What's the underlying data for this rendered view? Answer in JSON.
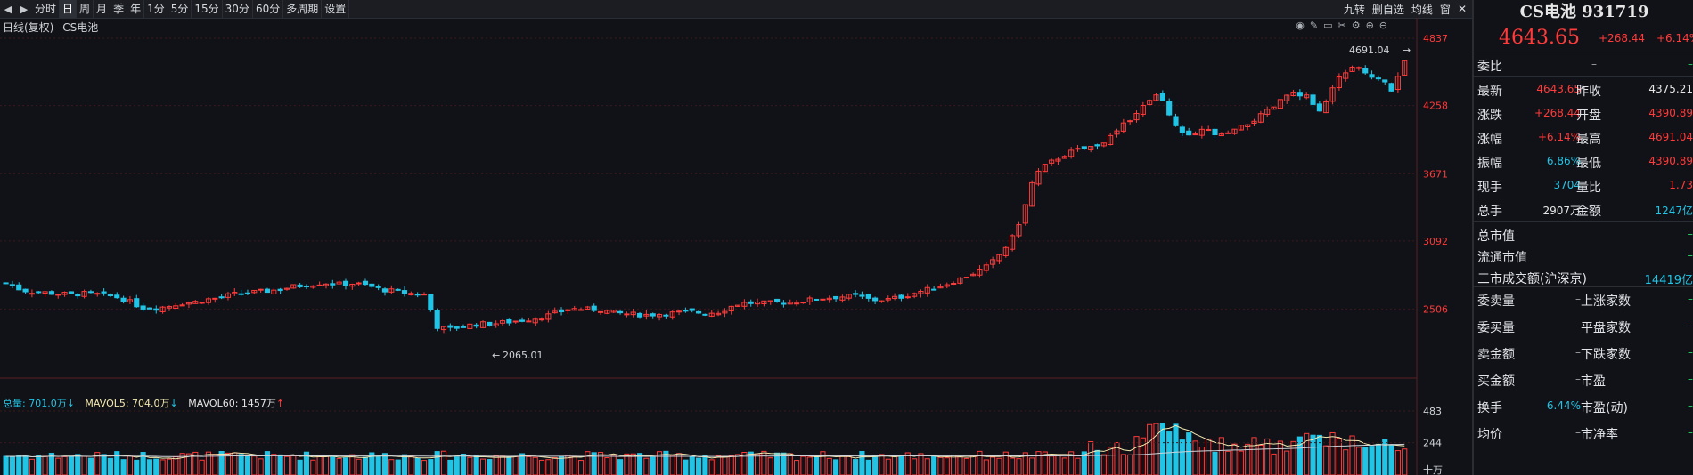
{
  "toolbar": {
    "periods": [
      "分时",
      "日",
      "周",
      "月",
      "季",
      "年",
      "1分",
      "5分",
      "15分",
      "30分",
      "60分",
      "多周期",
      "设置"
    ],
    "active_period": "日",
    "right_buttons": [
      "九转",
      "删自选",
      "均线",
      "窗"
    ]
  },
  "chart": {
    "subtitle_left": "日线(复权)",
    "subtitle_name": "CS电池",
    "high_label": "4691.04",
    "low_label": "2065.01",
    "price_ticks": [
      "4837",
      "4258",
      "3671",
      "3092",
      "2506"
    ],
    "volume_ticks": [
      "483",
      "244",
      "十万"
    ],
    "volume_total_label": "总量: 701.0万",
    "mavol5_label": "MAVOL5: 704.0万",
    "mavol60_label": "MAVOL60: 1457万"
  },
  "panel": {
    "title": "CS电池 931719",
    "last": "4643.65",
    "change": "+268.44",
    "change_pct": "+6.14%",
    "weibi_label": "委比",
    "weibi_value": "–",
    "rows": [
      {
        "l1": "最新",
        "v1": "4643.65",
        "c1": "red",
        "l2": "昨收",
        "v2": "4375.21",
        "c2": "white"
      },
      {
        "l1": "涨跌",
        "v1": "+268.44",
        "c1": "red",
        "l2": "开盘",
        "v2": "4390.89",
        "c2": "red"
      },
      {
        "l1": "涨幅",
        "v1": "+6.14%",
        "c1": "red",
        "l2": "最高",
        "v2": "4691.04",
        "c2": "red"
      },
      {
        "l1": "振幅",
        "v1": "6.86%",
        "c1": "cyan",
        "l2": "最低",
        "v2": "4390.89",
        "c2": "red"
      },
      {
        "l1": "现手",
        "v1": "3704",
        "c1": "cyan",
        "l2": "量比",
        "v2": "1.73",
        "c2": "red"
      },
      {
        "l1": "总手",
        "v1": "2907万",
        "c1": "white",
        "l2": "金额",
        "v2": "1247亿",
        "c2": "cyan"
      }
    ],
    "market_rows": [
      {
        "label": "总市值",
        "value": "–"
      },
      {
        "label": "流通市值",
        "value": "–"
      },
      {
        "label": "三市成交额(沪深京)",
        "value": "14419亿"
      }
    ],
    "bottom_rows": [
      {
        "l1": "委卖量",
        "v1": "–",
        "l2": "上涨家数",
        "v2": "–"
      },
      {
        "l1": "委买量",
        "v1": "–",
        "l2": "平盘家数",
        "v2": "–"
      },
      {
        "l1": "卖金额",
        "v1": "–",
        "l2": "下跌家数",
        "v2": "–"
      },
      {
        "l1": "买金额",
        "v1": "–",
        "l2": "市盈",
        "v2": "–"
      },
      {
        "l1": "换手",
        "v1": "6.44%",
        "l2": "市盈(动)",
        "v2": "–"
      },
      {
        "l1": "均价",
        "v1": "–",
        "l2": "市净率",
        "v2": "–"
      }
    ]
  },
  "chart_data": {
    "type": "candlestick",
    "ylim": [
      2065,
      4837
    ],
    "price_ticks": [
      4837,
      4258,
      3671,
      3092,
      2506
    ],
    "annotated_high": 4691.04,
    "annotated_low": 2065.01,
    "close_path": [
      [
        0,
        2730
      ],
      [
        8,
        2672
      ],
      [
        14,
        2654
      ],
      [
        20,
        2650
      ],
      [
        26,
        2640
      ],
      [
        34,
        2632
      ],
      [
        42,
        2640
      ],
      [
        50,
        2630
      ],
      [
        58,
        2612
      ],
      [
        64,
        2580
      ],
      [
        72,
        2520
      ],
      [
        80,
        2515
      ],
      [
        86,
        2532
      ],
      [
        92,
        2555
      ],
      [
        100,
        2566
      ],
      [
        106,
        2588
      ],
      [
        112,
        2600
      ],
      [
        120,
        2632
      ],
      [
        128,
        2646
      ],
      [
        136,
        2658
      ],
      [
        144,
        2672
      ],
      [
        152,
        2700
      ],
      [
        160,
        2716
      ],
      [
        168,
        2732
      ],
      [
        176,
        2720
      ],
      [
        184,
        2726
      ],
      [
        192,
        2706
      ],
      [
        198,
        2676
      ],
      [
        206,
        2658
      ],
      [
        214,
        2640
      ],
      [
        222,
        2630
      ],
      [
        228,
        2356
      ],
      [
        234,
        2330
      ],
      [
        242,
        2360
      ],
      [
        250,
        2378
      ],
      [
        258,
        2380
      ],
      [
        266,
        2396
      ],
      [
        274,
        2412
      ],
      [
        282,
        2432
      ],
      [
        290,
        2466
      ],
      [
        298,
        2508
      ],
      [
        306,
        2506
      ],
      [
        314,
        2502
      ],
      [
        322,
        2474
      ],
      [
        330,
        2462
      ],
      [
        338,
        2456
      ],
      [
        346,
        2464
      ],
      [
        354,
        2472
      ],
      [
        362,
        2484
      ],
      [
        370,
        2470
      ],
      [
        378,
        2484
      ],
      [
        386,
        2546
      ],
      [
        392,
        2560
      ],
      [
        400,
        2556
      ],
      [
        408,
        2560
      ],
      [
        416,
        2566
      ],
      [
        424,
        2582
      ],
      [
        432,
        2600
      ],
      [
        440,
        2610
      ],
      [
        450,
        2620
      ],
      [
        458,
        2584
      ],
      [
        466,
        2586
      ],
      [
        474,
        2612
      ],
      [
        482,
        2650
      ],
      [
        490,
        2684
      ],
      [
        498,
        2724
      ],
      [
        506,
        2774
      ],
      [
        514,
        2830
      ],
      [
        520,
        2880
      ],
      [
        526,
        2980
      ],
      [
        532,
        3100
      ],
      [
        538,
        3320
      ],
      [
        544,
        3650
      ],
      [
        550,
        3740
      ],
      [
        556,
        3800
      ],
      [
        562,
        3850
      ],
      [
        568,
        3880
      ],
      [
        574,
        3900
      ],
      [
        580,
        3940
      ],
      [
        586,
        4000
      ],
      [
        592,
        4100
      ],
      [
        598,
        4200
      ],
      [
        604,
        4280
      ],
      [
        610,
        4350
      ],
      [
        616,
        4180
      ],
      [
        622,
        4010
      ],
      [
        628,
        3980
      ],
      [
        634,
        4060
      ],
      [
        642,
        3990
      ],
      [
        650,
        4040
      ],
      [
        656,
        4090
      ],
      [
        664,
        4170
      ],
      [
        672,
        4260
      ],
      [
        680,
        4380
      ],
      [
        688,
        4340
      ],
      [
        696,
        4200
      ],
      [
        706,
        4520
      ],
      [
        714,
        4600
      ],
      [
        720,
        4540
      ],
      [
        728,
        4480
      ],
      [
        734,
        4380
      ],
      [
        740,
        4644
      ]
    ],
    "volume_ticks": [
      483,
      244
    ],
    "volume_total": "701.0万",
    "mavol5": "704.0万",
    "mavol60": "1457万"
  }
}
